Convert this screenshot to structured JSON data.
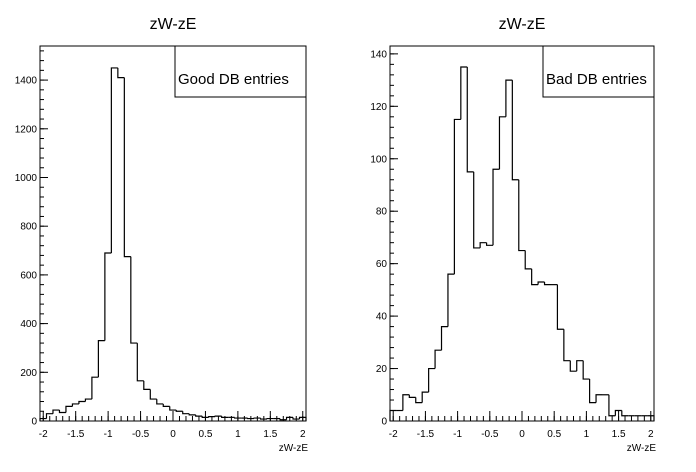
{
  "chart_data": [
    {
      "type": "histogram",
      "title": "zW-zE",
      "xlabel": "zW-zE",
      "ylabel": "",
      "legend": "Good DB entries",
      "legend_position": "top-right",
      "xlim": [
        -2.05,
        2.05
      ],
      "ylim": [
        0,
        1540
      ],
      "bin_width": 0.1,
      "x_ticks": [
        -2,
        -1.5,
        -1,
        -0.5,
        0,
        0.5,
        1,
        1.5,
        2
      ],
      "x_tick_labels": [
        "-2",
        "-1.5",
        "-1",
        "-0.5",
        "0",
        "0.5",
        "1",
        "1.5",
        "2"
      ],
      "y_ticks": [
        0,
        200,
        400,
        600,
        800,
        1000,
        1200,
        1400
      ],
      "y_tick_labels": [
        "0",
        "200",
        "400",
        "600",
        "800",
        "1000",
        "1200",
        "1400"
      ],
      "bin_edges": [
        -2.05,
        -1.95,
        -1.85,
        -1.75,
        -1.65,
        -1.55,
        -1.45,
        -1.35,
        -1.25,
        -1.15,
        -1.05,
        -0.95,
        -0.85,
        -0.75,
        -0.65,
        -0.55,
        -0.45,
        -0.35,
        -0.25,
        -0.15,
        -0.05,
        0.05,
        0.15,
        0.25,
        0.35,
        0.45,
        0.55,
        0.65,
        0.75,
        0.85,
        0.95,
        1.05,
        1.15,
        1.25,
        1.35,
        1.45,
        1.55,
        1.65,
        1.75,
        1.85,
        1.95,
        2.05
      ],
      "values": [
        10,
        30,
        45,
        35,
        60,
        70,
        80,
        90,
        180,
        330,
        690,
        1450,
        1410,
        675,
        320,
        165,
        130,
        90,
        70,
        60,
        45,
        40,
        30,
        25,
        20,
        15,
        18,
        20,
        15,
        15,
        12,
        12,
        10,
        12,
        8,
        10,
        10,
        5,
        15,
        8,
        15
      ]
    },
    {
      "type": "histogram",
      "title": "zW-zE",
      "xlabel": "zW-zE",
      "ylabel": "",
      "legend": "Bad DB entries",
      "legend_position": "top-right",
      "xlim": [
        -2.05,
        2.05
      ],
      "ylim": [
        0,
        143
      ],
      "bin_width": 0.1,
      "x_ticks": [
        -2,
        -1.5,
        -1,
        -0.5,
        0,
        0.5,
        1,
        1.5,
        2
      ],
      "x_tick_labels": [
        "-2",
        "-1.5",
        "-1",
        "-0.5",
        "0",
        "0.5",
        "1",
        "1.5",
        "2"
      ],
      "y_ticks": [
        0,
        20,
        40,
        60,
        80,
        100,
        120,
        140
      ],
      "y_tick_labels": [
        "0",
        "20",
        "40",
        "60",
        "80",
        "100",
        "120",
        "140"
      ],
      "bin_edges": [
        -2.05,
        -1.95,
        -1.85,
        -1.75,
        -1.65,
        -1.55,
        -1.45,
        -1.35,
        -1.25,
        -1.15,
        -1.05,
        -0.95,
        -0.85,
        -0.75,
        -0.65,
        -0.55,
        -0.45,
        -0.35,
        -0.25,
        -0.15,
        -0.05,
        0.05,
        0.15,
        0.25,
        0.35,
        0.45,
        0.55,
        0.65,
        0.75,
        0.85,
        0.95,
        1.05,
        1.15,
        1.25,
        1.35,
        1.45,
        1.55,
        1.65,
        1.75,
        1.85,
        1.95,
        2.05
      ],
      "values": [
        4,
        4,
        10,
        9,
        7,
        11,
        20,
        27,
        36,
        56,
        115,
        135,
        95,
        66,
        68,
        67,
        96,
        116,
        130,
        92,
        65,
        58,
        52,
        53,
        52,
        52,
        35,
        23,
        19,
        23,
        16,
        7,
        10,
        10,
        2,
        4,
        2,
        2,
        2,
        2,
        2
      ]
    }
  ]
}
